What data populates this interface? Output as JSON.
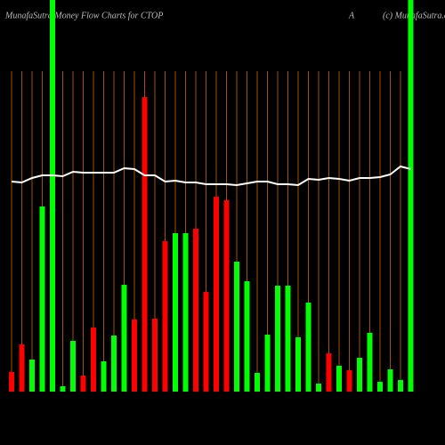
{
  "chart_data": {
    "type": "bar",
    "title": "MunafaSutra  Money Flow  Charts for CTOP",
    "subtitle": "A",
    "annotation": "(c) MunafaSutra.com",
    "ylim": [
      0,
      440
    ],
    "grid": true,
    "grid_color": "#cc6600",
    "line_color": "#ffffff",
    "series": [
      {
        "name": "money-flow",
        "values": [
          22,
          53,
          36,
          208,
          440,
          6,
          57,
          18,
          72,
          34,
          63,
          120,
          81,
          331,
          82,
          169,
          178,
          178,
          183,
          112,
          219,
          215,
          146,
          124,
          21,
          64,
          119,
          119,
          61,
          100,
          9,
          43,
          29,
          24,
          38,
          66,
          11,
          25,
          13,
          440
        ],
        "colors": [
          "#ff0000",
          "#ff0000",
          "#00ff00",
          "#00ff00",
          "#00ff00",
          "#00ff00",
          "#00ff00",
          "#ff0000",
          "#ff0000",
          "#00ff00",
          "#00ff00",
          "#00ff00",
          "#ff0000",
          "#ff0000",
          "#ff0000",
          "#ff0000",
          "#00ff00",
          "#00ff00",
          "#ff0000",
          "#ff0000",
          "#ff0000",
          "#ff0000",
          "#00ff00",
          "#00ff00",
          "#00ff00",
          "#00ff00",
          "#00ff00",
          "#00ff00",
          "#00ff00",
          "#00ff00",
          "#00ff00",
          "#ff0000",
          "#00ff00",
          "#ff0000",
          "#00ff00",
          "#00ff00",
          "#00ff00",
          "#00ff00",
          "#00ff00",
          "#00ff00"
        ]
      },
      {
        "name": "price",
        "values": [
          236,
          235,
          240,
          243,
          243,
          242,
          247,
          246,
          246,
          246,
          246,
          251,
          250,
          243,
          243,
          236,
          237,
          235,
          235,
          233,
          233,
          233,
          232,
          234,
          236,
          236,
          233,
          233,
          232,
          239,
          238,
          240,
          239,
          237,
          240,
          240,
          241,
          244,
          253,
          250
        ]
      }
    ]
  }
}
